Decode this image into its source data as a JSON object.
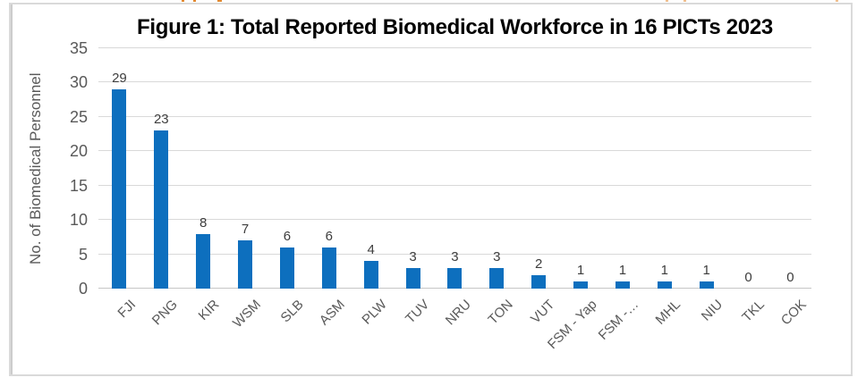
{
  "chart_data": {
    "type": "bar",
    "title": "Figure 1: Total Reported Biomedical Workforce in 16 PICTs 2023",
    "categories": [
      "FJI",
      "PNG",
      "KIR",
      "WSM",
      "SLB",
      "ASM",
      "PLW",
      "TUV",
      "NRU",
      "TON",
      "VUT",
      "FSM - Yap",
      "FSM -…",
      "MHL",
      "NIU",
      "TKL",
      "COK"
    ],
    "values": [
      29,
      23,
      8,
      7,
      6,
      6,
      4,
      3,
      3,
      3,
      2,
      1,
      1,
      1,
      1,
      0,
      0
    ],
    "xlabel": "",
    "ylabel": "No. of Biomedical Personnel",
    "ylim": [
      0,
      35
    ],
    "ytick_step": 5,
    "grid": true,
    "legend": "none",
    "bar_color": "#0d6fbe",
    "gridline_color": "#d9d9d9",
    "baseline_color": "#c6c6c6",
    "axis_text_color": "#595959",
    "value_label_color": "#3d3d3d",
    "frame_border_color": "#dadada"
  },
  "artifacts": {
    "description": "cropped orange text fragments along top edge",
    "color": "#e2882f",
    "positions": [
      203,
      216,
      243,
      744,
      764,
      934
    ]
  }
}
